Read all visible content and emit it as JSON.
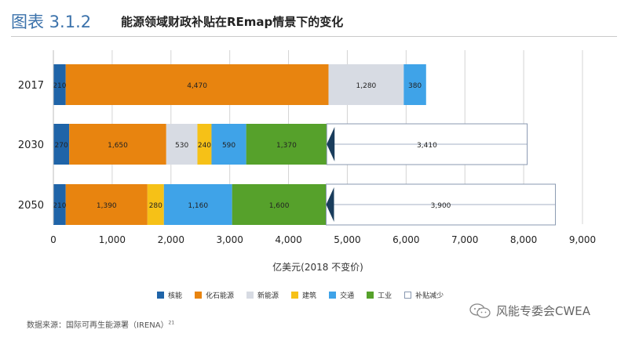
{
  "header": {
    "figure_number": "图表 3.1.2",
    "title": "能源领域财政补贴在REmap情景下的变化"
  },
  "chart_data": {
    "type": "bar",
    "orientation": "horizontal",
    "stacked": true,
    "categories": [
      "2017",
      "2030",
      "2050"
    ],
    "series": [
      {
        "name": "核能",
        "color": "#1f64a8",
        "values": [
          210,
          270,
          210
        ]
      },
      {
        "name": "化石能源",
        "color": "#e8840f",
        "values": [
          4470,
          1650,
          1390
        ]
      },
      {
        "name": "新能源",
        "color": "#d7dbe3",
        "values": [
          1280,
          530,
          null
        ]
      },
      {
        "name": "建筑",
        "color": "#f6c117",
        "values": [
          null,
          240,
          280
        ]
      },
      {
        "name": "交通",
        "color": "#3fa3e8",
        "values": [
          380,
          590,
          1160
        ]
      },
      {
        "name": "工业",
        "color": "#56a12b",
        "values": [
          null,
          1370,
          1600
        ]
      },
      {
        "name": "补贴减少",
        "color": "#ffffff",
        "border": "#8898b0",
        "values": [
          null,
          3410,
          3900
        ]
      }
    ],
    "xlabel": "亿美元(2018 不变价)",
    "xlim": [
      0,
      9000
    ],
    "xticks": [
      0,
      1000,
      2000,
      3000,
      4000,
      5000,
      6000,
      7000,
      8000,
      9000
    ],
    "xtick_labels": [
      "0",
      "1,000",
      "2,000",
      "3,000",
      "4,000",
      "5,000",
      "6,000",
      "7,000",
      "8,000",
      "9,000"
    ],
    "grid": "vertical",
    "legend": "bottom",
    "marker_color": "#1a3d5c"
  },
  "source": {
    "text": "数据来源：国际可再生能源署（IRENA）",
    "sup": "21"
  },
  "watermark": {
    "text": "风能专委会CWEA",
    "icon": "wechat-icon"
  }
}
